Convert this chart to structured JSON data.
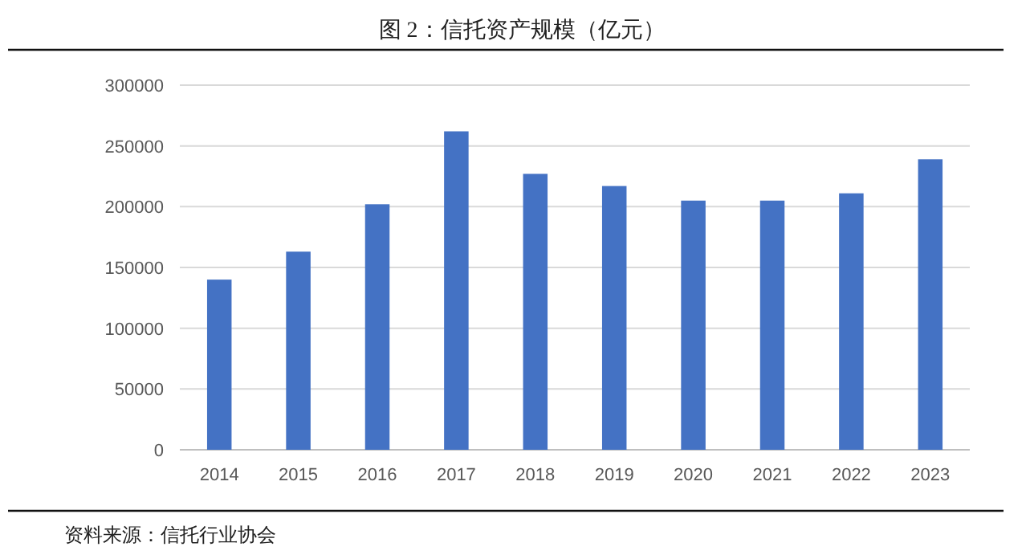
{
  "chart_data": {
    "type": "bar",
    "title": "图 2：信托资产规模（亿元）",
    "categories": [
      "2014",
      "2015",
      "2016",
      "2017",
      "2018",
      "2019",
      "2020",
      "2021",
      "2022",
      "2023"
    ],
    "values": [
      140000,
      163000,
      202000,
      262000,
      227000,
      217000,
      205000,
      205000,
      211000,
      239000
    ],
    "color": "#4472c4",
    "ylim": [
      0,
      300000
    ],
    "yticks": [
      0,
      50000,
      100000,
      150000,
      200000,
      250000,
      300000
    ],
    "grid": "y",
    "annotations": [
      "资料来源：信托行业协会"
    ]
  }
}
